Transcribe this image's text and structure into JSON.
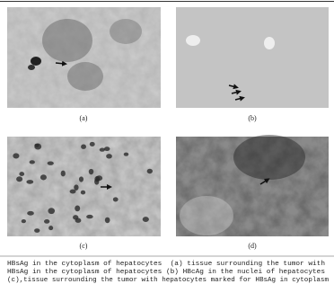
{
  "figure": {
    "panels": [
      {
        "label": "(a)"
      },
      {
        "label": "(b)"
      },
      {
        "label": "(c)"
      },
      {
        "label": "(d)"
      }
    ],
    "caption": [
      "HBsAg in the cytoplasm of hepatocytes  (a) tissue surrounding the tumor with",
      "HBsAg in the cytoplasm of hepatocytes (b) HBcAg in the nuclei of hepatocytes",
      "(c),tissue surrounding the tumor with hepatocytes marked for HBsAg in cytoplasm"
    ]
  }
}
